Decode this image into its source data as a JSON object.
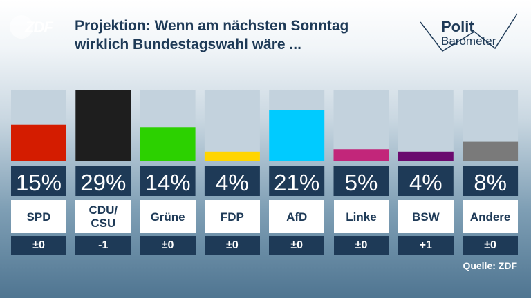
{
  "broadcaster": {
    "logo_text": "ZDF"
  },
  "header": {
    "title": "Projektion: Wenn am nächsten Sonntag wirklich Bundestagswahl wäre ...",
    "brand_line1": "Polit",
    "brand_line2": "Barometer"
  },
  "chart_data": {
    "type": "bar",
    "title": "Projektion: Wenn am nächsten Sonntag wirklich Bundestagswahl wäre ...",
    "categories": [
      "SPD",
      "CDU/\nCSU",
      "Grüne",
      "FDP",
      "AfD",
      "Linke",
      "BSW",
      "Andere"
    ],
    "values": [
      15,
      29,
      14,
      4,
      21,
      5,
      4,
      8
    ],
    "value_labels": [
      "15%",
      "29%",
      "14%",
      "4%",
      "21%",
      "5%",
      "4%",
      "8%"
    ],
    "changes": [
      "±0",
      "-1",
      "±0",
      "±0",
      "±0",
      "±0",
      "+1",
      "±0"
    ],
    "colors": [
      "#d41c00",
      "#1e1e1e",
      "#2cd100",
      "#ffd500",
      "#00cbff",
      "#c2267a",
      "#6a0a6e",
      "#7a7a7a"
    ],
    "unit": "%",
    "ylim": [
      0,
      29
    ],
    "grid": false,
    "legend": "none"
  },
  "footer": {
    "source": "Quelle: ZDF"
  }
}
